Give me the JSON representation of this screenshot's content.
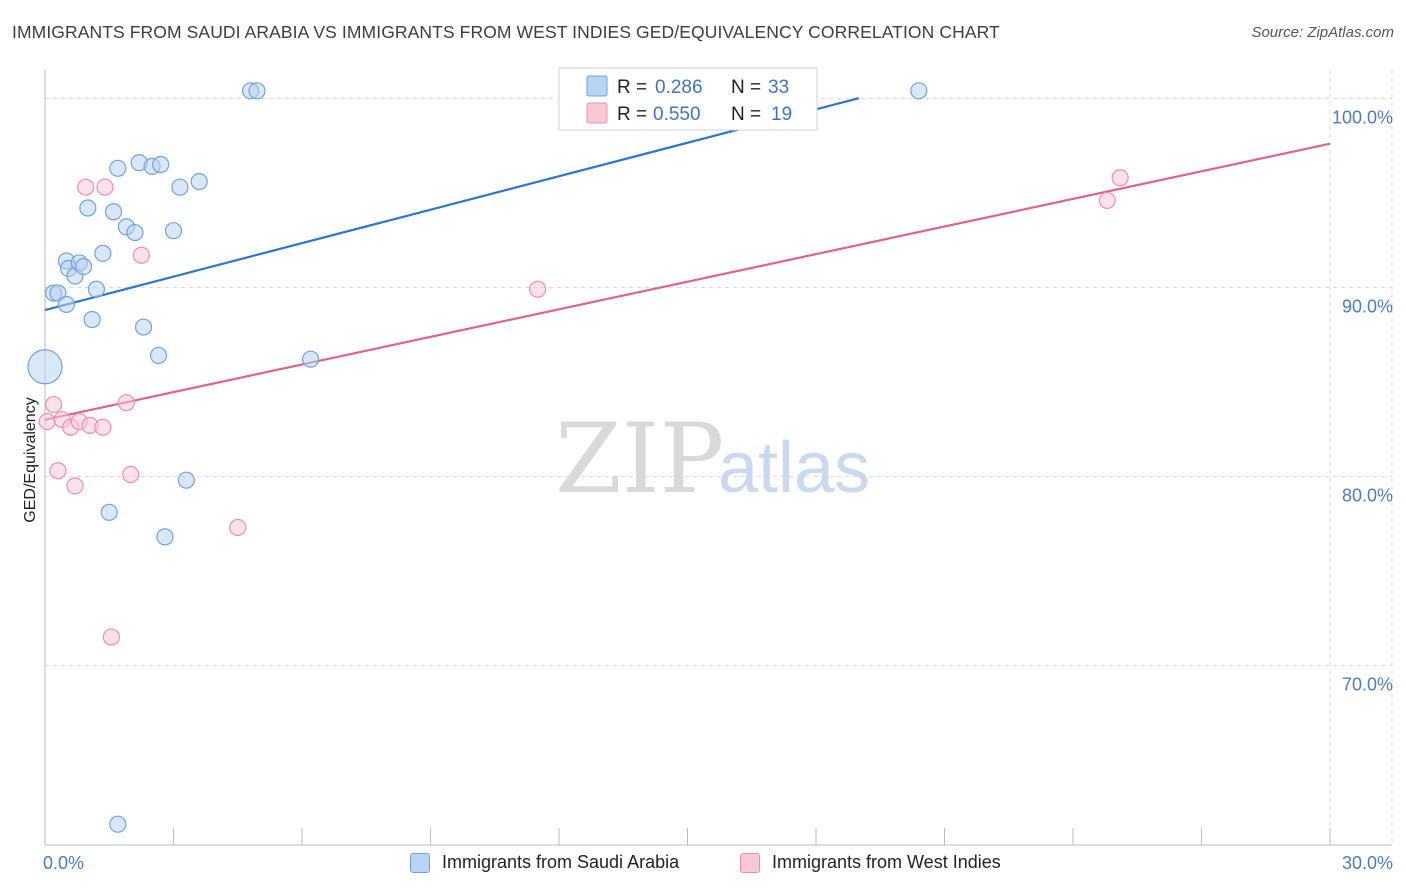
{
  "title": "IMMIGRANTS FROM SAUDI ARABIA VS IMMIGRANTS FROM WEST INDIES GED/EQUIVALENCY CORRELATION CHART",
  "source": "Source: ZipAtlas.com",
  "watermark": {
    "zip": "ZIP",
    "atlas": "atlas"
  },
  "colors": {
    "blue": "#6fa3e0",
    "blue_fill": "#b9d3f3",
    "blue_line": "#2f74d0",
    "pink": "#ef8fac",
    "pink_fill": "#f8c8d7",
    "pink_line": "#e0628e",
    "grid": "#d8d8d8",
    "tick_label": "#4a7bc4"
  },
  "legend": {
    "rows": [
      {
        "r_label": "R =",
        "r_value": "0.286",
        "n_label": "N =",
        "n_value": "33",
        "series": "blue"
      },
      {
        "r_label": "R =",
        "r_value": "0.550",
        "n_label": "N =",
        "n_value": "19",
        "series": "pink"
      }
    ]
  },
  "bottom_legend": {
    "blue_label": "Immigrants from Saudi Arabia",
    "pink_label": "Immigrants from West Indies"
  },
  "chart_data": {
    "type": "scatter",
    "title": "IMMIGRANTS FROM SAUDI ARABIA VS IMMIGRANTS FROM WEST INDIES GED/EQUIVALENCY CORRELATION CHART",
    "xlabel": "",
    "ylabel": "GED/Equivalency",
    "xlim": [
      0,
      30
    ],
    "ylim": [
      60.5,
      101.5
    ],
    "x_tick_labels": [
      {
        "value": 0,
        "label": "0.0%"
      },
      {
        "value": 30,
        "label": "30.0%"
      }
    ],
    "x_minor_ticks": [
      3,
      6,
      9,
      12,
      15,
      18,
      21,
      24,
      27,
      30
    ],
    "y_ticks": [
      {
        "value": 100,
        "label": "100.0%"
      },
      {
        "value": 90,
        "label": "90.0%"
      },
      {
        "value": 80,
        "label": "80.0%"
      },
      {
        "value": 70,
        "label": "70.0%"
      }
    ],
    "grid": true,
    "legend_position": "top-center",
    "series": [
      {
        "name": "Immigrants from Saudi Arabia",
        "color": "blue",
        "R": 0.286,
        "N": 33,
        "trend": {
          "x0": 0,
          "y0": 88.8,
          "x1": 30,
          "y1": 106.5,
          "x_end": 19.0
        },
        "points": [
          {
            "x": 0.0,
            "y": 85.8,
            "big": true
          },
          {
            "x": 0.2,
            "y": 89.7
          },
          {
            "x": 0.3,
            "y": 89.7
          },
          {
            "x": 0.5,
            "y": 91.4
          },
          {
            "x": 0.5,
            "y": 89.1
          },
          {
            "x": 0.55,
            "y": 91.0
          },
          {
            "x": 0.7,
            "y": 90.6
          },
          {
            "x": 0.8,
            "y": 91.3
          },
          {
            "x": 0.9,
            "y": 91.1
          },
          {
            "x": 1.0,
            "y": 94.2
          },
          {
            "x": 1.1,
            "y": 88.3
          },
          {
            "x": 1.2,
            "y": 89.9
          },
          {
            "x": 1.35,
            "y": 91.8
          },
          {
            "x": 1.5,
            "y": 78.1
          },
          {
            "x": 1.6,
            "y": 94.0
          },
          {
            "x": 1.7,
            "y": 96.3
          },
          {
            "x": 1.7,
            "y": 61.6
          },
          {
            "x": 1.9,
            "y": 93.2
          },
          {
            "x": 2.1,
            "y": 92.9
          },
          {
            "x": 2.2,
            "y": 96.6
          },
          {
            "x": 2.3,
            "y": 87.9
          },
          {
            "x": 2.5,
            "y": 96.4
          },
          {
            "x": 2.7,
            "y": 96.5
          },
          {
            "x": 2.65,
            "y": 86.4
          },
          {
            "x": 2.8,
            "y": 76.8
          },
          {
            "x": 3.0,
            "y": 93.0
          },
          {
            "x": 3.15,
            "y": 95.3
          },
          {
            "x": 3.3,
            "y": 79.8
          },
          {
            "x": 3.6,
            "y": 95.6
          },
          {
            "x": 4.8,
            "y": 100.4
          },
          {
            "x": 4.95,
            "y": 100.4
          },
          {
            "x": 6.2,
            "y": 86.2
          },
          {
            "x": 20.4,
            "y": 100.4
          }
        ]
      },
      {
        "name": "Immigrants from West Indies",
        "color": "pink",
        "R": 0.55,
        "N": 19,
        "trend": {
          "x0": 0,
          "y0": 83.0,
          "x1": 30,
          "y1": 97.6
        },
        "points": [
          {
            "x": 0.05,
            "y": 82.9
          },
          {
            "x": 0.2,
            "y": 83.8
          },
          {
            "x": 0.3,
            "y": 80.3
          },
          {
            "x": 0.4,
            "y": 83.0
          },
          {
            "x": 0.6,
            "y": 82.6
          },
          {
            "x": 0.7,
            "y": 79.5
          },
          {
            "x": 0.8,
            "y": 82.9
          },
          {
            "x": 0.95,
            "y": 95.3
          },
          {
            "x": 1.05,
            "y": 82.7
          },
          {
            "x": 1.35,
            "y": 82.6
          },
          {
            "x": 1.4,
            "y": 95.3
          },
          {
            "x": 1.55,
            "y": 71.5
          },
          {
            "x": 1.9,
            "y": 83.9
          },
          {
            "x": 2.0,
            "y": 80.1
          },
          {
            "x": 2.25,
            "y": 91.7
          },
          {
            "x": 4.5,
            "y": 77.3
          },
          {
            "x": 11.5,
            "y": 89.9
          },
          {
            "x": 24.8,
            "y": 94.6
          },
          {
            "x": 25.1,
            "y": 95.8
          }
        ]
      }
    ]
  }
}
